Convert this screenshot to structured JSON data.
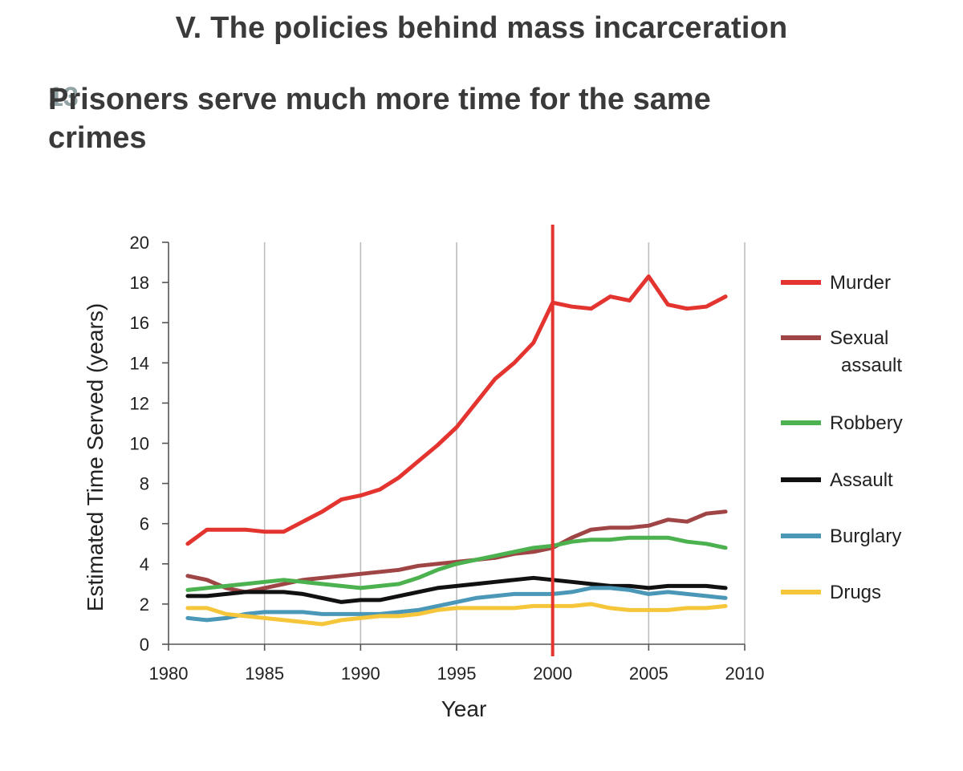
{
  "header": {
    "section_title": "V. The policies behind mass incarceration",
    "card_number": "13",
    "card_title": "Prisoners serve much more time for the same crimes"
  },
  "chart_data": {
    "type": "line",
    "title": "Prisoners serve much more time for the same crimes",
    "xlabel": "Year",
    "ylabel": "Estimated Time Served (years)",
    "xlim": [
      1980,
      2010
    ],
    "ylim": [
      0,
      20
    ],
    "xticks": [
      1980,
      1985,
      1990,
      1995,
      2000,
      2005,
      2010
    ],
    "yticks": [
      0,
      2,
      4,
      6,
      8,
      10,
      12,
      14,
      16,
      18,
      20
    ],
    "grid": "vertical",
    "legend_position": "right",
    "marker_line": {
      "x": 2000,
      "color": "#e3342f"
    },
    "x": [
      1981,
      1982,
      1983,
      1984,
      1985,
      1986,
      1987,
      1988,
      1989,
      1990,
      1991,
      1992,
      1993,
      1994,
      1995,
      1996,
      1997,
      1998,
      1999,
      2000,
      2001,
      2002,
      2003,
      2004,
      2005,
      2006,
      2007,
      2008,
      2009
    ],
    "series": [
      {
        "name": "Murder",
        "legend_lines": [
          "Murder"
        ],
        "color": "#e3342f",
        "values": [
          5.0,
          5.7,
          5.7,
          5.7,
          5.6,
          5.6,
          6.1,
          6.6,
          7.2,
          7.4,
          7.7,
          8.3,
          9.1,
          9.9,
          10.8,
          12.0,
          13.2,
          14.0,
          15.0,
          17.0,
          16.8,
          16.7,
          17.3,
          17.1,
          18.3,
          16.9,
          16.7,
          16.8,
          17.3
        ]
      },
      {
        "name": "Sexual assault",
        "legend_lines": [
          "Sexual",
          "assault"
        ],
        "color": "#a04545",
        "values": [
          3.4,
          3.2,
          2.8,
          2.6,
          2.8,
          3.0,
          3.2,
          3.3,
          3.4,
          3.5,
          3.6,
          3.7,
          3.9,
          4.0,
          4.1,
          4.2,
          4.3,
          4.5,
          4.6,
          4.8,
          5.3,
          5.7,
          5.8,
          5.8,
          5.9,
          6.2,
          6.1,
          6.5,
          6.6
        ]
      },
      {
        "name": "Robbery",
        "legend_lines": [
          "Robbery"
        ],
        "color": "#4cb14f",
        "values": [
          2.7,
          2.8,
          2.9,
          3.0,
          3.1,
          3.2,
          3.1,
          3.0,
          2.9,
          2.8,
          2.9,
          3.0,
          3.3,
          3.7,
          4.0,
          4.2,
          4.4,
          4.6,
          4.8,
          4.9,
          5.1,
          5.2,
          5.2,
          5.3,
          5.3,
          5.3,
          5.1,
          5.0,
          4.8
        ]
      },
      {
        "name": "Assault",
        "legend_lines": [
          "Assault"
        ],
        "color": "#111111",
        "values": [
          2.4,
          2.4,
          2.5,
          2.6,
          2.6,
          2.6,
          2.5,
          2.3,
          2.1,
          2.2,
          2.2,
          2.4,
          2.6,
          2.8,
          2.9,
          3.0,
          3.1,
          3.2,
          3.3,
          3.2,
          3.1,
          3.0,
          2.9,
          2.9,
          2.8,
          2.9,
          2.9,
          2.9,
          2.8
        ]
      },
      {
        "name": "Burglary",
        "legend_lines": [
          "Burglary"
        ],
        "color": "#4a97b7",
        "values": [
          1.3,
          1.2,
          1.3,
          1.5,
          1.6,
          1.6,
          1.6,
          1.5,
          1.5,
          1.5,
          1.5,
          1.6,
          1.7,
          1.9,
          2.1,
          2.3,
          2.4,
          2.5,
          2.5,
          2.5,
          2.6,
          2.8,
          2.8,
          2.7,
          2.5,
          2.6,
          2.5,
          2.4,
          2.3
        ]
      },
      {
        "name": "Drugs",
        "legend_lines": [
          "Drugs"
        ],
        "color": "#f5c53a",
        "values": [
          1.8,
          1.8,
          1.5,
          1.4,
          1.3,
          1.2,
          1.1,
          1.0,
          1.2,
          1.3,
          1.4,
          1.4,
          1.5,
          1.7,
          1.8,
          1.8,
          1.8,
          1.8,
          1.9,
          1.9,
          1.9,
          2.0,
          1.8,
          1.7,
          1.7,
          1.7,
          1.8,
          1.8,
          1.9
        ]
      }
    ]
  }
}
